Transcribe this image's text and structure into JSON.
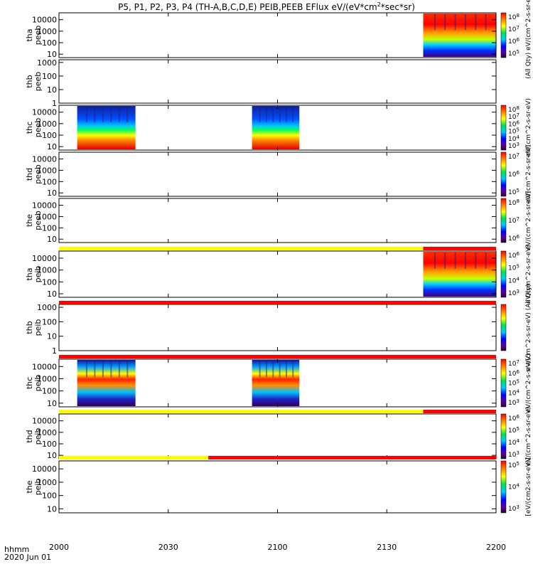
{
  "title_prefix": "P5, P1, P2, P3, P4 (TH-A,B,C,D,E) PEIB,PEEB EFlux eV/(eV*cm",
  "title_sup": "2",
  "title_suffix": "*sec*sr)",
  "footer": {
    "hhmm": "hhmm",
    "date": "2020 Jun 01"
  },
  "colors": {
    "yellow": "#ffff00",
    "red": "#ff0000",
    "bar_dark": "#000000"
  },
  "chart_data": {
    "type": "heatmap",
    "x_ticks": [
      "2000",
      "2030",
      "2100",
      "2130",
      "2200"
    ],
    "x_range": [
      "2000",
      "2200"
    ],
    "panels": [
      {
        "id": "tha-peeb",
        "label": [
          "tha",
          "peeb"
        ],
        "yticks": [
          "10000",
          "1000",
          "100",
          "10"
        ],
        "ylog": [
          0.7,
          4.6
        ],
        "colorbar": {
          "ticks": [
            "10^8",
            "10^7",
            "10^6",
            "10^5"
          ],
          "label": "(All Qty) eV/(cm^2-s-sr-eV)"
        },
        "blocks": [
          {
            "t0": "2140",
            "t1": "2200",
            "profile": "hot"
          }
        ]
      },
      {
        "id": "thb-peeb",
        "label": [
          "thb",
          "peeb"
        ],
        "yticks": [
          "1000",
          "100",
          "10",
          "1"
        ],
        "ylog": [
          0,
          3.2
        ],
        "colorbar": null,
        "blocks": []
      },
      {
        "id": "thc-peeb",
        "label": [
          "thc",
          "peeb"
        ],
        "yticks": [
          "10000",
          "1000",
          "100",
          "10"
        ],
        "ylog": [
          0.7,
          4.6
        ],
        "colorbar": {
          "ticks": [
            "10^8",
            "10^7",
            "10^6",
            "10^5",
            "10^4",
            "10^3"
          ],
          "label": "eV/(cm^2-s-sr-eV)"
        },
        "blocks": [
          {
            "t0": "2005",
            "t1": "2021",
            "profile": "cold"
          },
          {
            "t0": "2053",
            "t1": "2066",
            "profile": "cold"
          }
        ]
      },
      {
        "id": "thd-peeb",
        "label": [
          "thd",
          "peeb"
        ],
        "yticks": [
          "10000",
          "1000",
          "100",
          "10"
        ],
        "ylog": [
          0.7,
          4.6
        ],
        "colorbar": {
          "ticks": [
            "10^7",
            "10^6",
            "10^5"
          ],
          "label": "eV/(cm^2-s-sr-eV)"
        },
        "blocks": []
      },
      {
        "id": "the-peeb",
        "label": [
          "the",
          "peeb"
        ],
        "yticks": [
          "10000",
          "1000",
          "100",
          "10"
        ],
        "ylog": [
          0.7,
          4.6
        ],
        "colorbar": {
          "ticks": [
            "10^8",
            "10^7",
            "10^6"
          ],
          "label": "eV/(cm^2-s-sr-eV)"
        },
        "blocks": []
      },
      {
        "id": "tha-peib",
        "label": [
          "tha",
          "peib"
        ],
        "yticks": [
          "10000",
          "1000",
          "100",
          "10"
        ],
        "ylog": [
          0.7,
          4.6
        ],
        "colorbar": {
          "ticks": [
            "10^6",
            "10^5",
            "10^4",
            "10^3"
          ],
          "label": "eV/(cm^2-s-sr-eV)"
        },
        "blocks": [
          {
            "t0": "2140",
            "t1": "2200",
            "profile": "hot"
          }
        ]
      },
      {
        "id": "thb-peib",
        "label": [
          "thb",
          "peib"
        ],
        "yticks": [
          "1000",
          "100",
          "10",
          "1"
        ],
        "ylog": [
          0,
          3.2
        ],
        "colorbar": {
          "ticks": [],
          "label": "eV/(cm^2-s-sr-eV) (All Qty)"
        },
        "blocks": []
      },
      {
        "id": "thc-peib",
        "label": [
          "thc",
          "peib"
        ],
        "yticks": [
          "10000",
          "1000",
          "100",
          "10"
        ],
        "ylog": [
          0.7,
          4.6
        ],
        "colorbar": {
          "ticks": [
            "10^7",
            "10^6",
            "10^5",
            "10^4",
            "10^3"
          ],
          "label": "eV/(cm^2-s-sr-eV)"
        },
        "blocks": [
          {
            "t0": "2005",
            "t1": "2021",
            "profile": "ion"
          },
          {
            "t0": "2053",
            "t1": "2066",
            "profile": "ion"
          }
        ]
      },
      {
        "id": "thd-peib",
        "label": [
          "thd",
          "peib"
        ],
        "yticks": [
          "10000",
          "1000",
          "100",
          "10"
        ],
        "ylog": [
          0.7,
          4.6
        ],
        "colorbar": {
          "ticks": [
            "10^6",
            "10^5",
            "10^4",
            "10^3"
          ],
          "label": "eV/(cm^2-s-sr-eV)"
        },
        "blocks": []
      },
      {
        "id": "the-peib",
        "label": [
          "the",
          "peib"
        ],
        "yticks": [
          "10000",
          "1000",
          "100",
          "10"
        ],
        "ylog": [
          0.7,
          4.6
        ],
        "colorbar": {
          "ticks": [
            "10^5",
            "10^4",
            "10^3"
          ],
          "label": "[eV/(cm2-s-sr-eV)]"
        },
        "blocks": []
      }
    ],
    "mode_bars": [
      {
        "after_panel": 4,
        "segments": [
          {
            "t0": "2000",
            "t1": "2140",
            "color": "yellow"
          },
          {
            "t0": "2140",
            "t1": "2200",
            "color": "red"
          }
        ]
      },
      {
        "after_panel": 5,
        "segments": [
          {
            "t0": "2000",
            "t1": "2200",
            "color": "red"
          }
        ]
      },
      {
        "after_panel": 6,
        "segments": [
          {
            "t0": "2000",
            "t1": "2200",
            "color": "red"
          }
        ]
      },
      {
        "after_panel": 7,
        "segments": [
          {
            "t0": "2000",
            "t1": "2140",
            "color": "yellow"
          },
          {
            "t0": "2140",
            "t1": "2200",
            "color": "red"
          }
        ]
      },
      {
        "after_panel": 8,
        "segments": [
          {
            "t0": "2000",
            "t1": "2041",
            "color": "yellow"
          },
          {
            "t0": "2041",
            "t1": "2200",
            "color": "red"
          }
        ]
      }
    ]
  }
}
